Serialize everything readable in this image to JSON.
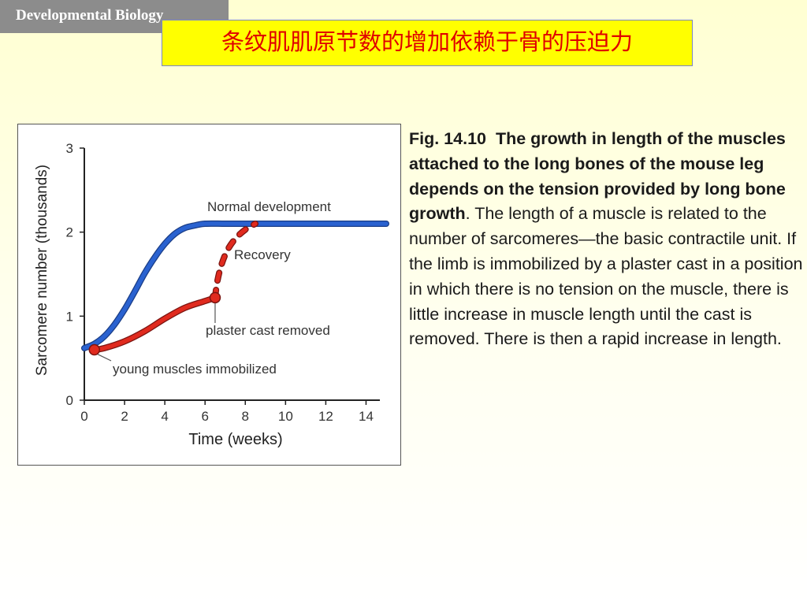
{
  "header_tag": "Developmental Biology",
  "slide_title": "条纹肌肌原节数的增加依赖于骨的压迫力",
  "caption": {
    "fig_number": "Fig. 14.10",
    "bold_text": "The growth in length of the muscles attached to the long bones of the mouse leg depends on the tension provided by long bone growth",
    "body_text": ". The length of a muscle is related to the number of sarcomeres—the basic contractile unit. If the limb is immobilized by a plaster cast in a position in which there is no tension on the muscle, there is little increase in muscle length until the cast is removed. There is then a rapid increase in length."
  },
  "chart_data": {
    "type": "line",
    "xlabel": "Time (weeks)",
    "ylabel": "Sarcomere number (thousands)",
    "xlim": [
      0,
      15
    ],
    "ylim": [
      0,
      3
    ],
    "x_ticks": [
      0,
      2,
      4,
      6,
      8,
      10,
      12,
      14
    ],
    "y_ticks": [
      0,
      1,
      2,
      3
    ],
    "grid": false,
    "series": [
      {
        "name": "Normal development",
        "color": "#2a62d0",
        "style": "solid",
        "x": [
          0,
          0.5,
          1,
          1.5,
          2,
          2.5,
          3,
          3.5,
          4,
          4.5,
          5,
          5.5,
          6,
          7,
          8,
          9,
          10,
          11,
          12,
          13,
          14,
          15
        ],
        "y": [
          0.62,
          0.67,
          0.76,
          0.9,
          1.08,
          1.29,
          1.51,
          1.7,
          1.86,
          1.98,
          2.05,
          2.08,
          2.1,
          2.1,
          2.1,
          2.1,
          2.1,
          2.1,
          2.1,
          2.1,
          2.1,
          2.1
        ]
      },
      {
        "name": "young muscles immobilized",
        "color": "#e02a1e",
        "style": "solid",
        "x": [
          0.5,
          1,
          2,
          3,
          4,
          5,
          6,
          6.5
        ],
        "y": [
          0.6,
          0.62,
          0.7,
          0.82,
          0.97,
          1.1,
          1.18,
          1.22
        ]
      },
      {
        "name": "Recovery",
        "color": "#e02a1e",
        "style": "dashed",
        "x": [
          6.5,
          6.6,
          6.8,
          7.1,
          7.5,
          8,
          8.5
        ],
        "y": [
          1.22,
          1.4,
          1.6,
          1.78,
          1.92,
          2.03,
          2.1
        ]
      }
    ],
    "markers": [
      {
        "x": 0.5,
        "y": 0.6,
        "color": "#e02a1e"
      },
      {
        "x": 6.5,
        "y": 1.22,
        "color": "#e02a1e"
      }
    ],
    "annotations": [
      {
        "text": "Normal development"
      },
      {
        "text": "Recovery"
      },
      {
        "text": "plaster cast removed"
      },
      {
        "text": "young muscles immobilized"
      }
    ]
  }
}
